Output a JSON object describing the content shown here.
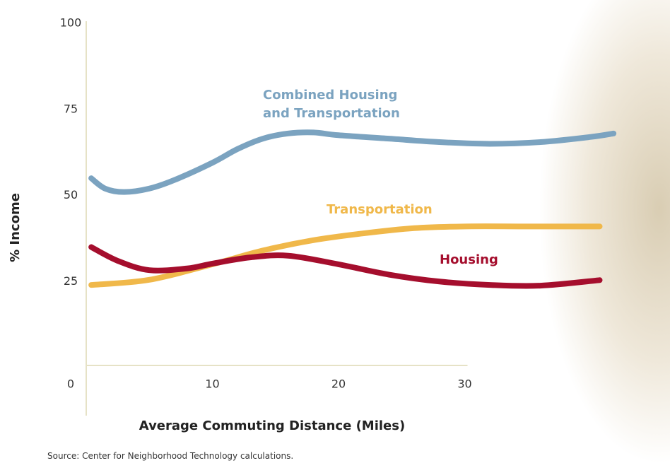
{
  "chart_data": {
    "type": "line",
    "x_label": "Average Commuting Distance (Miles)",
    "y_label": "% Income",
    "source": "Source: Center for Neighborhood Technology calculations.",
    "xlim": [
      0,
      42
    ],
    "xticks": [
      10,
      20,
      30
    ],
    "ylim": [
      0,
      100
    ],
    "yticks": [
      0,
      25,
      50,
      75,
      100
    ],
    "series": [
      {
        "name": "Combined Housing and Transportation",
        "color": "#7ba3c0",
        "x": [
          0.4,
          1.5,
          3,
          5,
          7,
          10,
          12,
          14,
          16,
          18,
          20,
          24,
          28,
          32,
          36,
          40,
          41.8
        ],
        "values": [
          55,
          52,
          51,
          52,
          54.5,
          59.5,
          63.5,
          66.5,
          68,
          68.3,
          67.5,
          66.5,
          65.5,
          65,
          65.5,
          67,
          68
        ]
      },
      {
        "name": "Transportation",
        "color": "#f0b84a",
        "x": [
          0.4,
          5,
          10,
          14,
          18,
          22,
          26,
          30,
          35,
          40.7
        ],
        "values": [
          24,
          25.5,
          30,
          34,
          37,
          39,
          40.5,
          41,
          41,
          41
        ]
      },
      {
        "name": "Housing",
        "color": "#a50e2d",
        "x": [
          0.4,
          2.5,
          5,
          8,
          10,
          13,
          16,
          20,
          24,
          28,
          32,
          36,
          40.7
        ],
        "values": [
          35,
          31,
          28.3,
          28.8,
          30.2,
          32,
          32.5,
          30,
          27,
          25,
          24,
          23.8,
          25.4
        ]
      }
    ]
  }
}
